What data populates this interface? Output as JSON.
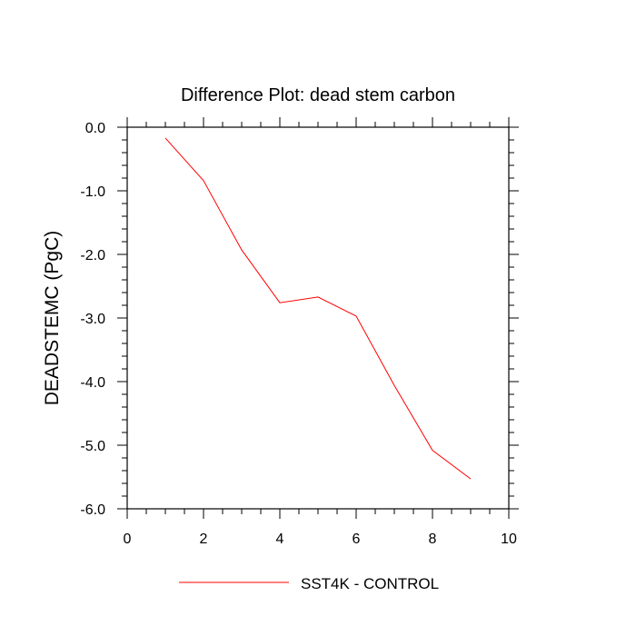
{
  "chart_data": {
    "type": "line",
    "title": "Difference Plot: dead stem carbon",
    "xlabel": "",
    "ylabel": "DEADSTEMC  (PgC)",
    "xlim": [
      0,
      10
    ],
    "ylim": [
      -6,
      0
    ],
    "x_ticks": [
      0,
      2,
      4,
      6,
      8,
      10
    ],
    "x_tick_labels": [
      "0",
      "2",
      "4",
      "6",
      "8",
      "10"
    ],
    "y_ticks": [
      0,
      -1,
      -2,
      -3,
      -4,
      -5,
      -6
    ],
    "y_tick_labels": [
      "0.0",
      "-1.0",
      "-2.0",
      "-3.0",
      "-4.0",
      "-5.0",
      "-6.0"
    ],
    "grid": false,
    "legend_position": "bottom",
    "series": [
      {
        "name": "SST4K - CONTROL",
        "color": "#ff0000",
        "x": [
          1,
          2,
          3,
          4,
          5,
          6,
          7,
          8,
          9
        ],
        "y": [
          -0.17,
          -0.84,
          -1.93,
          -2.76,
          -2.67,
          -2.97,
          -4.06,
          -5.08,
          -5.53
        ]
      }
    ]
  }
}
